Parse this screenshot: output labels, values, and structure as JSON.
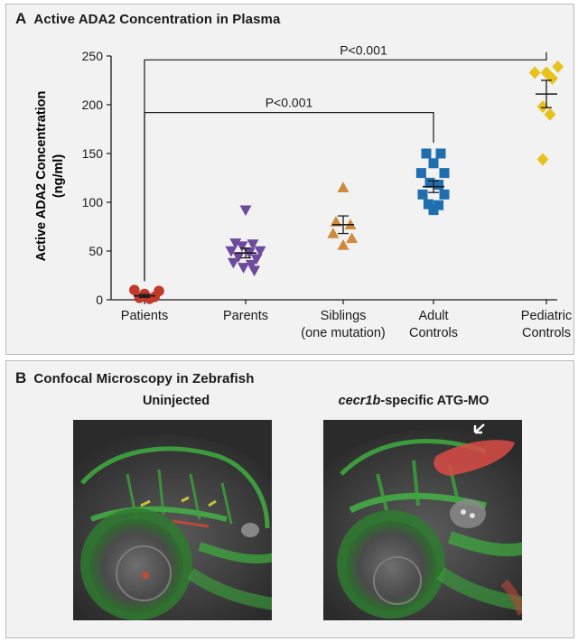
{
  "panel_a": {
    "letter": "A",
    "title": "Active ADA2 Concentration in Plasma"
  },
  "panel_b": {
    "letter": "B",
    "title": "Confocal Microscopy in Zebrafish",
    "left_label": "Uninjected",
    "right_label_italic": "cecr1b",
    "right_label_rest": "-specific ATG-MO"
  },
  "chart_data": {
    "type": "scatter",
    "title": "Active ADA2 Concentration in Plasma",
    "ylabel_line1": "Active ADA2 Concentration",
    "ylabel_line2": "(ng/ml)",
    "ylim": [
      0,
      250
    ],
    "yticks": [
      "0",
      "50",
      "100",
      "150",
      "200",
      "250"
    ],
    "grid": false,
    "categories": [
      {
        "line1": "Patients",
        "line2": ""
      },
      {
        "line1": "Parents",
        "line2": ""
      },
      {
        "line1": "Siblings",
        "line2": "(one mutation)"
      },
      {
        "line1": "Adult",
        "line2": "Controls"
      },
      {
        "line1": "Pediatric",
        "line2": "Controls"
      }
    ],
    "groups": [
      {
        "marker": "circle",
        "color": "#c0392b",
        "mean": 4,
        "sem": 1.5,
        "points": [
          [
            -0.14,
            10
          ],
          [
            0.0,
            6
          ],
          [
            0.14,
            3
          ],
          [
            -0.07,
            2
          ],
          [
            0.07,
            1
          ],
          [
            0.2,
            9
          ]
        ]
      },
      {
        "marker": "triangle-down",
        "color": "#6d4a9c",
        "mean": 48,
        "sem": 5,
        "points": [
          [
            0.0,
            92
          ],
          [
            -0.14,
            58
          ],
          [
            0.1,
            57
          ],
          [
            -0.05,
            55
          ],
          [
            -0.2,
            50
          ],
          [
            0.2,
            50
          ],
          [
            0.05,
            48
          ],
          [
            -0.1,
            44
          ],
          [
            0.15,
            42
          ],
          [
            -0.17,
            38
          ],
          [
            0.08,
            36
          ],
          [
            -0.03,
            33
          ],
          [
            0.12,
            30
          ]
        ]
      },
      {
        "marker": "triangle-up",
        "color": "#d08a3c",
        "mean": 77,
        "sem": 9,
        "points": [
          [
            0.0,
            115
          ],
          [
            -0.1,
            80
          ],
          [
            0.1,
            77
          ],
          [
            -0.14,
            68
          ],
          [
            0.12,
            63
          ],
          [
            0.0,
            56
          ]
        ]
      },
      {
        "marker": "square",
        "color": "#1f6fb0",
        "mean": 116,
        "sem": 6,
        "points": [
          [
            -0.1,
            150
          ],
          [
            0.1,
            150
          ],
          [
            0.0,
            140
          ],
          [
            -0.17,
            130
          ],
          [
            0.15,
            130
          ],
          [
            -0.05,
            120
          ],
          [
            0.07,
            118
          ],
          [
            -0.15,
            108
          ],
          [
            0.15,
            108
          ],
          [
            -0.07,
            98
          ],
          [
            0.07,
            97
          ],
          [
            0.0,
            92
          ]
        ]
      },
      {
        "marker": "diamond",
        "color": "#e8c21c",
        "mean": 211,
        "sem": 14,
        "points": [
          [
            -0.16,
            233
          ],
          [
            0.0,
            233
          ],
          [
            0.16,
            239
          ],
          [
            0.08,
            227
          ],
          [
            -0.05,
            198
          ],
          [
            0.05,
            190
          ],
          [
            -0.05,
            144
          ]
        ]
      }
    ],
    "annotations": [
      {
        "text": "P<0.001",
        "from": 0,
        "to": 3,
        "level": 192
      },
      {
        "text": "P<0.001",
        "from": 0,
        "to": 4,
        "level": 246
      }
    ]
  }
}
